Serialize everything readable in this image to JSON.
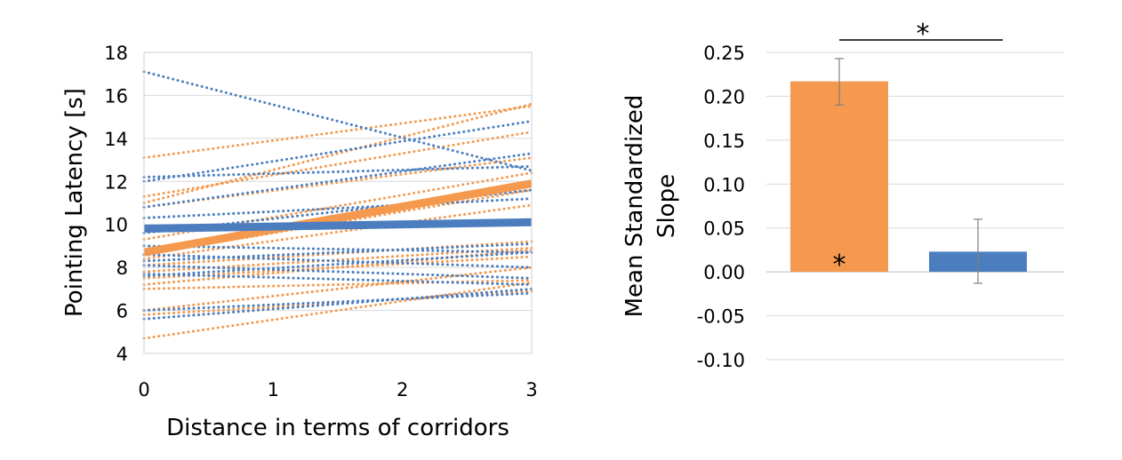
{
  "chart_data": [
    {
      "type": "line",
      "xlabel": "Distance in terms of corridors",
      "ylabel": "Pointing Latency [s]",
      "xlim": [
        0,
        3
      ],
      "ylim": [
        4,
        18
      ],
      "x_ticks": [
        "0",
        "1",
        "2",
        "3"
      ],
      "y_ticks": [
        "4",
        "6",
        "8",
        "10",
        "12",
        "14",
        "16",
        "18"
      ],
      "grid": true,
      "legend": "none",
      "colors": {
        "orange": "#f4994e",
        "blue": "#4c7ebf",
        "grid": "#d9d9d9",
        "frame": "#d0d0d0"
      },
      "series": [
        {
          "color": "orange",
          "style": "solid",
          "x": [
            0,
            3
          ],
          "y": [
            8.7,
            11.9
          ]
        },
        {
          "color": "blue",
          "style": "solid",
          "x": [
            0,
            3
          ],
          "y": [
            9.8,
            10.1
          ]
        },
        {
          "color": "orange",
          "style": "dotted",
          "x": [
            0,
            3
          ],
          "y": [
            13.1,
            15.5
          ]
        },
        {
          "color": "orange",
          "style": "dotted",
          "x": [
            0,
            3
          ],
          "y": [
            11.3,
            14.3
          ]
        },
        {
          "color": "orange",
          "style": "dotted",
          "x": [
            0,
            3
          ],
          "y": [
            11.0,
            15.6
          ]
        },
        {
          "color": "orange",
          "style": "dotted",
          "x": [
            0,
            3
          ],
          "y": [
            10.8,
            13.1
          ]
        },
        {
          "color": "orange",
          "style": "dotted",
          "x": [
            0,
            3
          ],
          "y": [
            9.3,
            12.4
          ]
        },
        {
          "color": "orange",
          "style": "dotted",
          "x": [
            0,
            3
          ],
          "y": [
            8.6,
            11.6
          ]
        },
        {
          "color": "orange",
          "style": "dotted",
          "x": [
            0,
            3
          ],
          "y": [
            8.4,
            10.9
          ]
        },
        {
          "color": "orange",
          "style": "dotted",
          "x": [
            0,
            3
          ],
          "y": [
            8.1,
            9.2
          ]
        },
        {
          "color": "orange",
          "style": "dotted",
          "x": [
            0,
            3
          ],
          "y": [
            7.8,
            8.9
          ]
        },
        {
          "color": "orange",
          "style": "dotted",
          "x": [
            0,
            3
          ],
          "y": [
            7.5,
            8.5
          ]
        },
        {
          "color": "orange",
          "style": "dotted",
          "x": [
            0,
            3
          ],
          "y": [
            7.2,
            8.8
          ]
        },
        {
          "color": "orange",
          "style": "dotted",
          "x": [
            0,
            3
          ],
          "y": [
            7.0,
            7.4
          ]
        },
        {
          "color": "orange",
          "style": "dotted",
          "x": [
            0,
            3
          ],
          "y": [
            6.0,
            8.0
          ]
        },
        {
          "color": "orange",
          "style": "dotted",
          "x": [
            0,
            3
          ],
          "y": [
            5.8,
            6.9
          ]
        },
        {
          "color": "orange",
          "style": "dotted",
          "x": [
            0,
            3
          ],
          "y": [
            4.7,
            7.3
          ]
        },
        {
          "color": "blue",
          "style": "dotted",
          "x": [
            0,
            3
          ],
          "y": [
            17.1,
            12.5
          ]
        },
        {
          "color": "blue",
          "style": "dotted",
          "x": [
            0,
            3
          ],
          "y": [
            12.2,
            12.7
          ]
        },
        {
          "color": "blue",
          "style": "dotted",
          "x": [
            0,
            3
          ],
          "y": [
            12.0,
            14.8
          ]
        },
        {
          "color": "blue",
          "style": "dotted",
          "x": [
            0,
            3
          ],
          "y": [
            10.8,
            13.3
          ]
        },
        {
          "color": "blue",
          "style": "dotted",
          "x": [
            0,
            3
          ],
          "y": [
            10.3,
            11.2
          ]
        },
        {
          "color": "blue",
          "style": "dotted",
          "x": [
            0,
            3
          ],
          "y": [
            9.6,
            11.6
          ]
        },
        {
          "color": "blue",
          "style": "dotted",
          "x": [
            0,
            3
          ],
          "y": [
            9.0,
            8.7
          ]
        },
        {
          "color": "blue",
          "style": "dotted",
          "x": [
            0,
            3
          ],
          "y": [
            8.6,
            8.0
          ]
        },
        {
          "color": "blue",
          "style": "dotted",
          "x": [
            0,
            3
          ],
          "y": [
            8.3,
            9.1
          ]
        },
        {
          "color": "blue",
          "style": "dotted",
          "x": [
            0,
            3
          ],
          "y": [
            8.1,
            7.5
          ]
        },
        {
          "color": "blue",
          "style": "dotted",
          "x": [
            0,
            3
          ],
          "y": [
            7.7,
            7.2
          ]
        },
        {
          "color": "blue",
          "style": "dotted",
          "x": [
            0,
            3
          ],
          "y": [
            7.6,
            8.7
          ]
        },
        {
          "color": "blue",
          "style": "dotted",
          "x": [
            0,
            3
          ],
          "y": [
            6.0,
            6.8
          ]
        },
        {
          "color": "blue",
          "style": "dotted",
          "x": [
            0,
            3
          ],
          "y": [
            5.6,
            7.0
          ]
        }
      ]
    },
    {
      "type": "bar",
      "ylabel_lines": [
        "Mean Standardized",
        "Slope"
      ],
      "ylim": [
        -0.1,
        0.25
      ],
      "y_ticks": [
        "0.25",
        "0.20",
        "0.15",
        "0.10",
        "0.05",
        "0.00",
        "-0.05",
        "-0.10"
      ],
      "grid": true,
      "legend": "none",
      "series": [
        {
          "color": "#f4994e",
          "value": 0.217,
          "error_low": 0.19,
          "error_high": 0.243,
          "marker": "*"
        },
        {
          "color": "#4c7ebf",
          "value": 0.023,
          "error_low": -0.013,
          "error_high": 0.06,
          "marker": ""
        }
      ],
      "significance": {
        "label": "*",
        "between": [
          0,
          1
        ]
      }
    }
  ]
}
